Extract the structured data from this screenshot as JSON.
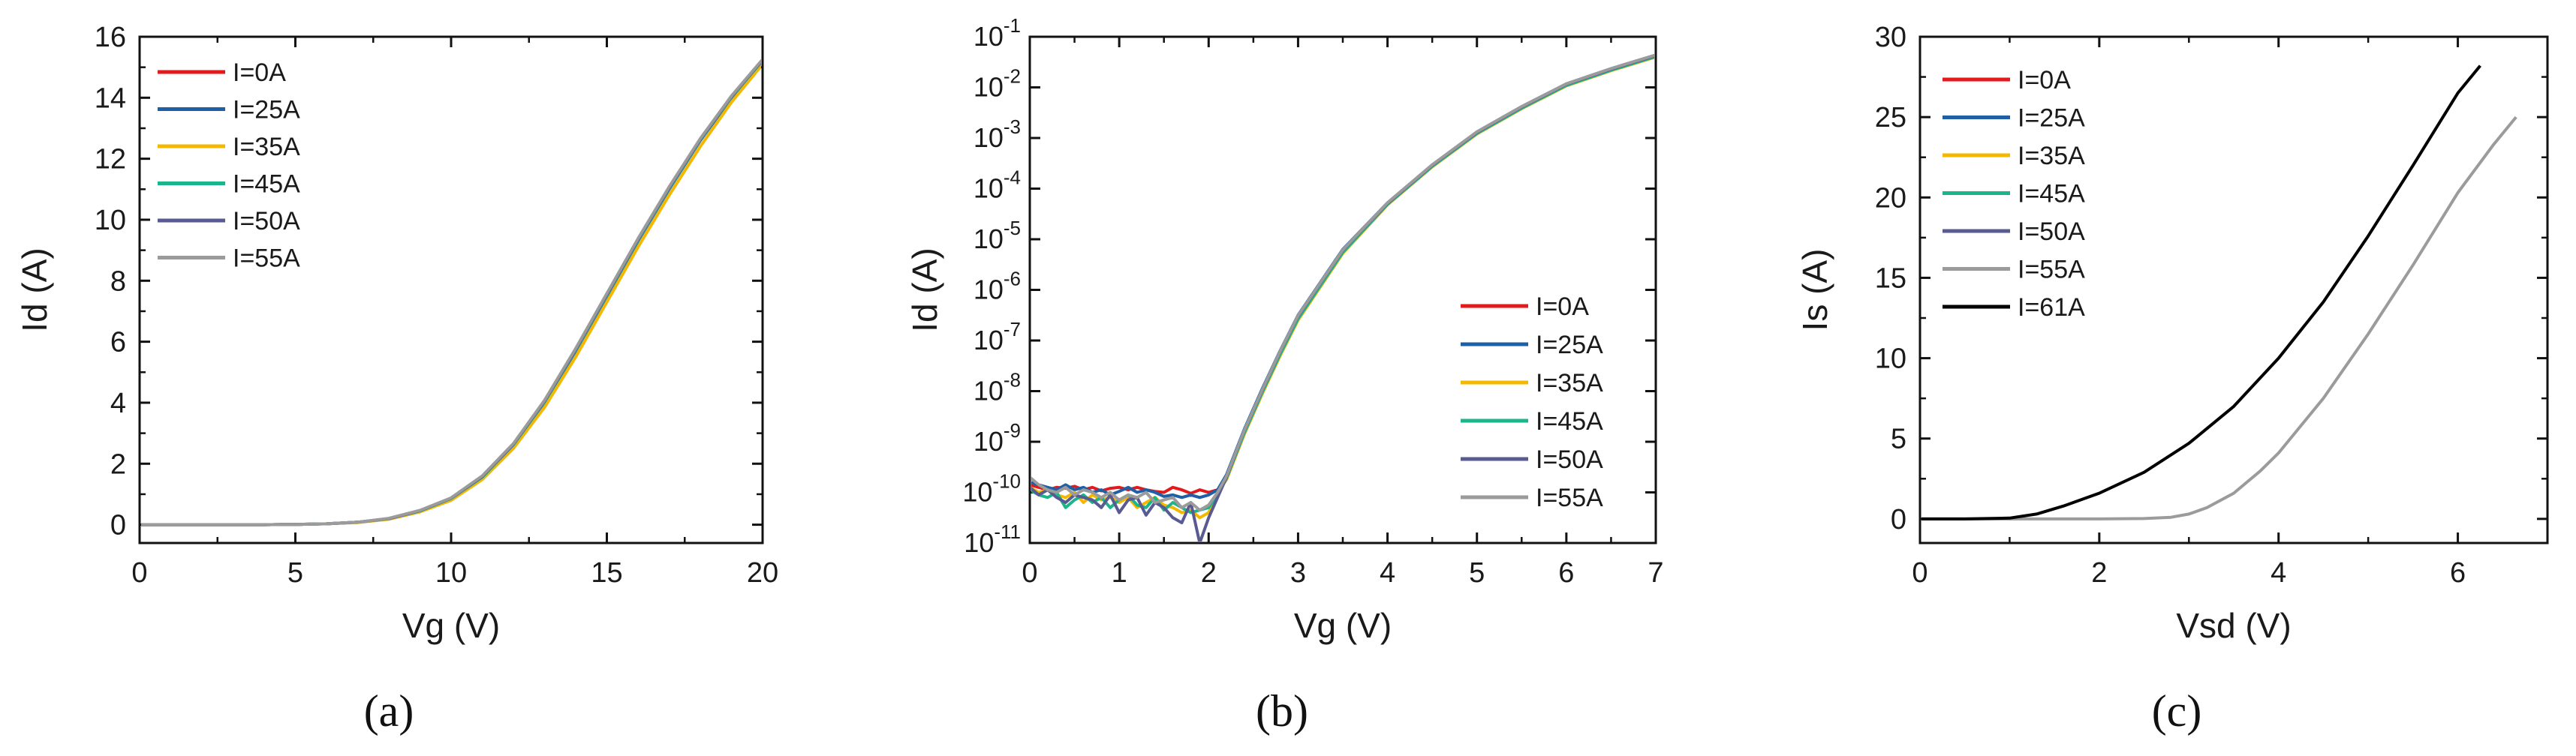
{
  "colors": {
    "I=0A": "#e3191c",
    "I=25A": "#1f5fa6",
    "I=35A": "#f5b800",
    "I=45A": "#1bb58c",
    "I=50A": "#5a5a92",
    "I=55A": "#9b9b9b",
    "I=61A": "#000000"
  },
  "chart_data": [
    {
      "id": "a",
      "type": "line",
      "panel_label": "(a)",
      "title": "",
      "xlabel": "Vg (V)",
      "ylabel": "Id (A)",
      "xlim": [
        0,
        20
      ],
      "ylim": [
        -0.6,
        16
      ],
      "yscale": "linear",
      "xticks": [
        0,
        5,
        10,
        15,
        20
      ],
      "xtick_labels": [
        "0",
        "5",
        "10",
        "15",
        "20"
      ],
      "yticks": [
        0,
        2,
        4,
        6,
        8,
        10,
        12,
        14,
        16
      ],
      "ytick_labels": [
        "0",
        "2",
        "4",
        "6",
        "8",
        "10",
        "12",
        "14",
        "16"
      ],
      "legend": "top-left",
      "x": [
        0,
        2,
        4,
        5,
        6,
        7,
        8,
        9,
        10,
        11,
        12,
        13,
        14,
        15,
        16,
        17,
        18,
        19,
        20
      ],
      "series": [
        {
          "name": "I=0A",
          "values": [
            0,
            0,
            0,
            0.01,
            0.03,
            0.08,
            0.2,
            0.45,
            0.85,
            1.55,
            2.6,
            4.0,
            5.7,
            7.5,
            9.3,
            11.0,
            12.6,
            14.0,
            15.2
          ]
        },
        {
          "name": "I=25A",
          "values": [
            0,
            0,
            0,
            0.01,
            0.03,
            0.08,
            0.2,
            0.45,
            0.85,
            1.55,
            2.6,
            4.0,
            5.7,
            7.5,
            9.3,
            11.0,
            12.6,
            14.0,
            15.2
          ]
        },
        {
          "name": "I=35A",
          "values": [
            0,
            0,
            0,
            0.01,
            0.03,
            0.07,
            0.18,
            0.42,
            0.8,
            1.48,
            2.5,
            3.85,
            5.5,
            7.3,
            9.1,
            10.8,
            12.4,
            13.85,
            15.1
          ]
        },
        {
          "name": "I=45A",
          "values": [
            0,
            0,
            0,
            0.01,
            0.03,
            0.08,
            0.2,
            0.45,
            0.86,
            1.56,
            2.62,
            4.02,
            5.72,
            7.52,
            9.32,
            11.02,
            12.62,
            14.02,
            15.22
          ]
        },
        {
          "name": "I=50A",
          "values": [
            0,
            0,
            0,
            0.01,
            0.03,
            0.08,
            0.2,
            0.46,
            0.87,
            1.58,
            2.64,
            4.05,
            5.75,
            7.55,
            9.35,
            11.05,
            12.64,
            14.04,
            15.24
          ]
        },
        {
          "name": "I=55A",
          "values": [
            0,
            0,
            0,
            0.01,
            0.03,
            0.08,
            0.21,
            0.47,
            0.88,
            1.6,
            2.66,
            4.08,
            5.78,
            7.58,
            9.38,
            11.08,
            12.66,
            14.06,
            15.26
          ]
        }
      ]
    },
    {
      "id": "b",
      "type": "line",
      "panel_label": "(b)",
      "title": "",
      "xlabel": "Vg (V)",
      "ylabel": "Id (A)",
      "xlim": [
        0,
        7
      ],
      "ylim": [
        -11,
        -1
      ],
      "yscale": "log10",
      "xticks": [
        0,
        1,
        2,
        3,
        4,
        5,
        6,
        7
      ],
      "xtick_labels": [
        "0",
        "1",
        "2",
        "3",
        "4",
        "5",
        "6",
        "7"
      ],
      "yticks": [
        -11,
        -10,
        -9,
        -8,
        -7,
        -6,
        -5,
        -4,
        -3,
        -2,
        -1
      ],
      "ytick_base": "10",
      "ytick_exponents": [
        "-11",
        "-10",
        "-9",
        "-8",
        "-7",
        "-6",
        "-5",
        "-4",
        "-3",
        "-2",
        "-1"
      ],
      "legend": "bottom-right",
      "x": [
        0,
        0.1,
        0.2,
        0.3,
        0.4,
        0.5,
        0.6,
        0.7,
        0.8,
        0.9,
        1.0,
        1.1,
        1.2,
        1.3,
        1.4,
        1.5,
        1.6,
        1.7,
        1.8,
        1.9,
        2.0,
        2.1,
        2.2,
        2.4,
        2.6,
        2.8,
        3.0,
        3.5,
        4.0,
        4.5,
        5.0,
        5.5,
        6.0,
        6.5,
        7.0
      ],
      "series": [
        {
          "name": "I=0A",
          "values": [
            -9.85,
            -9.9,
            -9.95,
            -9.9,
            -9.92,
            -9.88,
            -9.95,
            -9.9,
            -9.97,
            -9.92,
            -9.9,
            -9.95,
            -9.9,
            -9.95,
            -9.98,
            -10.0,
            -9.9,
            -9.95,
            -10.02,
            -9.95,
            -10.0,
            -9.95,
            -9.7,
            -8.8,
            -8.0,
            -7.25,
            -6.55,
            -5.25,
            -4.3,
            -3.55,
            -2.9,
            -2.4,
            -1.95,
            -1.65,
            -1.38
          ]
        },
        {
          "name": "I=25A",
          "values": [
            -9.8,
            -9.85,
            -9.9,
            -9.95,
            -9.85,
            -9.95,
            -9.9,
            -10.0,
            -9.95,
            -10.05,
            -9.98,
            -9.9,
            -10.0,
            -9.95,
            -10.0,
            -10.08,
            -10.05,
            -10.1,
            -10.05,
            -10.1,
            -10.05,
            -9.95,
            -9.65,
            -8.75,
            -7.95,
            -7.2,
            -6.5,
            -5.2,
            -4.28,
            -3.53,
            -2.88,
            -2.38,
            -1.93,
            -1.63,
            -1.36
          ]
        },
        {
          "name": "I=35A",
          "values": [
            -9.9,
            -10.0,
            -9.95,
            -10.05,
            -10.1,
            -10.0,
            -10.2,
            -10.05,
            -10.15,
            -10.1,
            -10.2,
            -10.1,
            -10.3,
            -10.2,
            -10.1,
            -10.25,
            -10.3,
            -10.4,
            -10.35,
            -10.5,
            -10.4,
            -10.0,
            -9.75,
            -8.85,
            -8.05,
            -7.3,
            -6.6,
            -5.28,
            -4.32,
            -3.57,
            -2.92,
            -2.42,
            -1.97,
            -1.67,
            -1.4
          ]
        },
        {
          "name": "I=45A",
          "values": [
            -9.95,
            -10.05,
            -10.1,
            -10.0,
            -10.3,
            -10.15,
            -10.05,
            -10.2,
            -10.1,
            -10.3,
            -10.15,
            -10.05,
            -10.25,
            -10.3,
            -10.1,
            -10.35,
            -10.2,
            -10.3,
            -10.4,
            -10.35,
            -10.3,
            -10.05,
            -9.72,
            -8.82,
            -8.02,
            -7.27,
            -6.57,
            -5.26,
            -4.31,
            -3.56,
            -2.91,
            -2.41,
            -1.96,
            -1.66,
            -1.39
          ]
        },
        {
          "name": "I=50A",
          "values": [
            -9.9,
            -10.05,
            -9.95,
            -10.1,
            -10.2,
            -10.05,
            -10.1,
            -10.15,
            -10.3,
            -10.05,
            -10.4,
            -10.15,
            -10.1,
            -10.45,
            -10.2,
            -10.3,
            -10.5,
            -10.6,
            -10.2,
            -11.0,
            -10.5,
            -10.1,
            -9.7,
            -8.78,
            -7.98,
            -7.22,
            -6.52,
            -5.22,
            -4.29,
            -3.54,
            -2.89,
            -2.39,
            -1.94,
            -1.64,
            -1.37
          ]
        },
        {
          "name": "I=55A",
          "values": [
            -9.7,
            -9.85,
            -9.95,
            -10.0,
            -9.9,
            -10.05,
            -9.95,
            -10.0,
            -10.1,
            -10.0,
            -10.15,
            -10.05,
            -10.1,
            -10.0,
            -10.2,
            -10.15,
            -10.1,
            -10.3,
            -10.2,
            -10.35,
            -10.25,
            -10.0,
            -9.68,
            -8.77,
            -7.97,
            -7.21,
            -6.51,
            -5.21,
            -4.28,
            -3.53,
            -2.88,
            -2.38,
            -1.93,
            -1.63,
            -1.36
          ]
        }
      ]
    },
    {
      "id": "c",
      "type": "line",
      "panel_label": "(c)",
      "title": "",
      "xlabel": "Vsd (V)",
      "ylabel": "Is (A)",
      "xlim": [
        0,
        7
      ],
      "ylim": [
        -1.5,
        30
      ],
      "yscale": "linear",
      "xticks": [
        0,
        2,
        4,
        6
      ],
      "xtick_labels": [
        "0",
        "2",
        "4",
        "6"
      ],
      "yticks": [
        0,
        5,
        10,
        15,
        20,
        25,
        30
      ],
      "ytick_labels": [
        "0",
        "5",
        "10",
        "15",
        "20",
        "25",
        "30"
      ],
      "legend": "top-left",
      "series": [
        {
          "name": "I=0A",
          "x": [],
          "values": []
        },
        {
          "name": "I=25A",
          "x": [],
          "values": []
        },
        {
          "name": "I=35A",
          "x": [],
          "values": []
        },
        {
          "name": "I=45A",
          "x": [],
          "values": []
        },
        {
          "name": "I=50A",
          "x": [],
          "values": []
        },
        {
          "name": "I=55A",
          "x": [
            0,
            1,
            2,
            2.5,
            2.8,
            3.0,
            3.2,
            3.5,
            3.8,
            4.0,
            4.5,
            5.0,
            5.5,
            6.0,
            6.4,
            6.65
          ],
          "values": [
            0,
            0,
            0,
            0.02,
            0.1,
            0.3,
            0.7,
            1.6,
            3.0,
            4.1,
            7.5,
            11.5,
            15.8,
            20.3,
            23.3,
            25.0
          ]
        },
        {
          "name": "I=61A",
          "x": [
            0,
            0.5,
            1.0,
            1.3,
            1.6,
            2.0,
            2.5,
            3.0,
            3.5,
            4.0,
            4.5,
            5.0,
            5.5,
            6.0,
            6.25
          ],
          "values": [
            0,
            0,
            0.05,
            0.3,
            0.8,
            1.6,
            2.9,
            4.7,
            7.0,
            10.0,
            13.5,
            17.6,
            22.0,
            26.5,
            28.2
          ]
        }
      ]
    }
  ]
}
